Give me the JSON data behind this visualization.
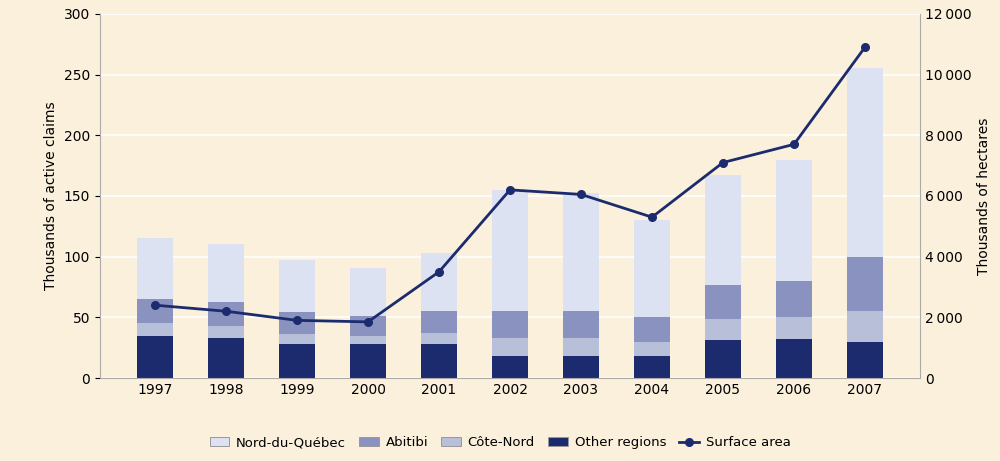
{
  "years": [
    1997,
    1998,
    1999,
    2000,
    2001,
    2002,
    2003,
    2004,
    2005,
    2006,
    2007
  ],
  "nord_du_quebec": [
    50,
    47,
    43,
    40,
    48,
    100,
    97,
    80,
    90,
    100,
    155
  ],
  "abitibi": [
    20,
    20,
    18,
    16,
    18,
    22,
    22,
    20,
    28,
    30,
    45
  ],
  "cote_nord": [
    10,
    10,
    8,
    7,
    9,
    15,
    15,
    12,
    18,
    18,
    25
  ],
  "other_regions": [
    35,
    33,
    28,
    28,
    28,
    18,
    18,
    18,
    31,
    32,
    30
  ],
  "surface_area": [
    2400,
    2200,
    1900,
    1850,
    3500,
    6200,
    6050,
    5300,
    7100,
    7700,
    10900
  ],
  "bar_colors": {
    "nord_du_quebec": "#dde2f2",
    "abitibi": "#8a93c0",
    "cote_nord": "#b8bfd8",
    "other_regions": "#1c2b6e"
  },
  "line_color": "#1c2b6e",
  "background_color": "#faf0dc",
  "ylabel_left": "Thousands of active claims",
  "ylabel_right": "Thousands of hectares",
  "ylim_left": [
    0,
    300
  ],
  "ylim_right": [
    0,
    12000
  ],
  "yticks_left": [
    0,
    50,
    100,
    150,
    200,
    250,
    300
  ],
  "yticks_right": [
    0,
    2000,
    4000,
    6000,
    8000,
    10000,
    12000
  ],
  "legend_labels": [
    "Nord-du-Québec",
    "Abitibi",
    "Côte-Nord",
    "Other regions",
    "Surface area"
  ]
}
